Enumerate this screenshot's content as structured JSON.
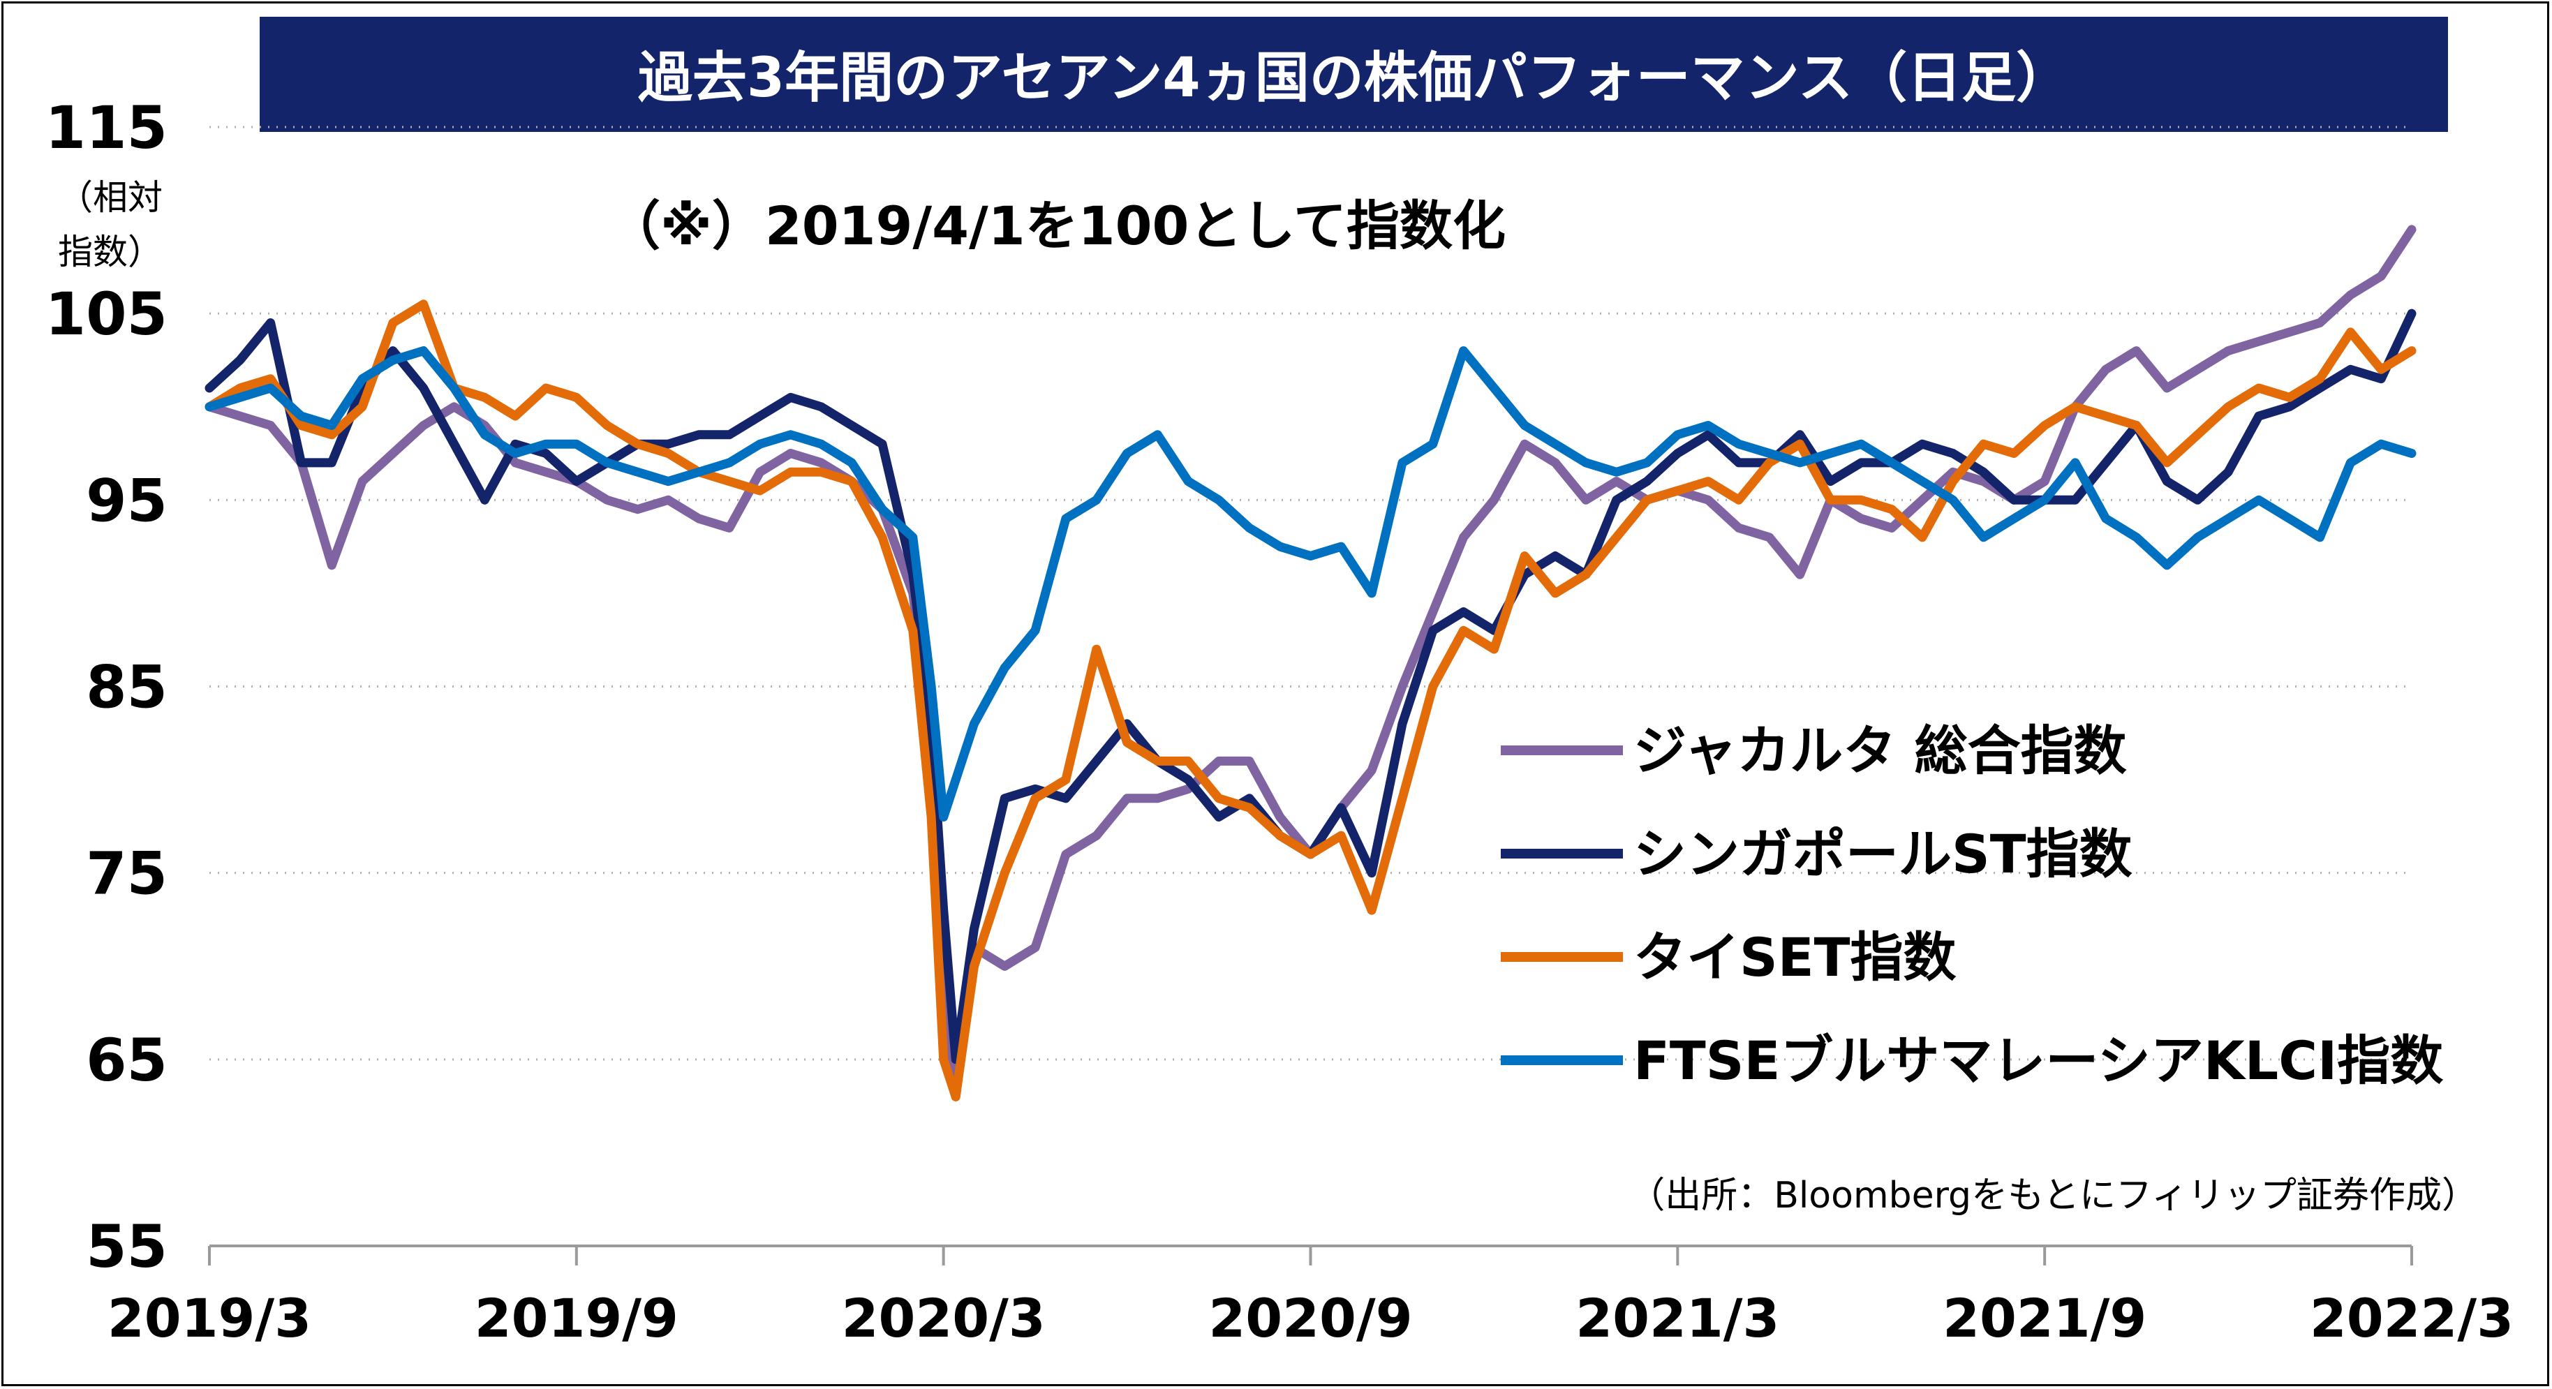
{
  "chart_data": {
    "type": "line",
    "title": "過去3年間のアセアン4ヵ国の株価パフォーマンス（日足）",
    "note": "（※）2019/4/1を100として指数化",
    "ylabel": "（相対指数）",
    "ylabel_lines": [
      "（相対",
      "指数）"
    ],
    "source": "（出所：Bloombergをもとにフィリップ証券作成）",
    "ylim": [
      55,
      115
    ],
    "y_ticks": [
      55,
      65,
      75,
      85,
      95,
      105,
      115
    ],
    "x_ticks": [
      "2019/3",
      "2019/9",
      "2020/3",
      "2020/9",
      "2021/3",
      "2021/9",
      "2022/3"
    ],
    "x_tick_months": [
      0,
      6,
      12,
      18,
      24,
      30,
      36
    ],
    "grid": true,
    "legend_position": "right-middle",
    "x": [
      0.0,
      0.5,
      1.0,
      1.5,
      2.0,
      2.5,
      3.0,
      3.5,
      4.0,
      4.5,
      5.0,
      5.5,
      6.0,
      6.5,
      7.0,
      7.5,
      8.0,
      8.5,
      9.0,
      9.5,
      10.0,
      10.5,
      11.0,
      11.5,
      11.8,
      12.0,
      12.2,
      12.5,
      13.0,
      13.5,
      14.0,
      14.5,
      15.0,
      15.5,
      16.0,
      16.5,
      17.0,
      17.5,
      18.0,
      18.5,
      19.0,
      19.5,
      20.0,
      20.5,
      21.0,
      21.5,
      22.0,
      22.5,
      23.0,
      23.5,
      24.0,
      24.5,
      25.0,
      25.5,
      26.0,
      26.5,
      27.0,
      27.5,
      28.0,
      28.5,
      29.0,
      29.5,
      30.0,
      30.5,
      31.0,
      31.5,
      32.0,
      32.5,
      33.0,
      33.5,
      34.0,
      34.5,
      35.0,
      35.5,
      36.0
    ],
    "series": [
      {
        "name": "ジャカルタ 総合指数",
        "color": "#8064a2",
        "values": [
          100.0,
          99.5,
          99.0,
          97.0,
          91.5,
          96.0,
          97.5,
          99.0,
          100.0,
          99.0,
          97.0,
          96.5,
          96.0,
          95.0,
          94.5,
          95.0,
          94.0,
          93.5,
          96.5,
          97.5,
          97.0,
          96.0,
          94.5,
          90.0,
          82.0,
          70.0,
          63.0,
          71.0,
          70.0,
          71.0,
          76.0,
          77.0,
          79.0,
          79.0,
          79.5,
          81.0,
          81.0,
          78.0,
          76.0,
          78.5,
          80.5,
          85.0,
          89.0,
          93.0,
          95.0,
          98.0,
          97.0,
          95.0,
          96.0,
          95.0,
          95.5,
          95.0,
          93.5,
          93.0,
          91.0,
          95.0,
          94.0,
          93.5,
          95.0,
          96.5,
          96.0,
          95.0,
          96.0,
          100.0,
          102.0,
          103.0,
          101.0,
          102.0,
          103.0,
          103.5,
          104.0,
          104.5,
          106.0,
          107.0,
          109.5
        ]
      },
      {
        "name": "シンガポールST指数",
        "color": "#14246b",
        "values": [
          101.0,
          102.5,
          104.5,
          97.0,
          97.0,
          101.0,
          103.0,
          101.0,
          98.0,
          95.0,
          98.0,
          97.5,
          96.0,
          97.0,
          98.0,
          98.0,
          98.5,
          98.5,
          99.5,
          100.5,
          100.0,
          99.0,
          98.0,
          91.0,
          83.0,
          73.0,
          65.0,
          72.0,
          79.0,
          79.5,
          79.0,
          81.0,
          83.0,
          81.0,
          80.0,
          78.0,
          79.0,
          77.0,
          76.0,
          78.5,
          75.0,
          83.0,
          88.0,
          89.0,
          88.0,
          91.0,
          92.0,
          91.0,
          95.0,
          96.0,
          97.5,
          98.5,
          97.0,
          97.0,
          98.5,
          96.0,
          97.0,
          97.0,
          98.0,
          97.5,
          96.5,
          95.0,
          95.0,
          95.0,
          97.0,
          99.0,
          96.0,
          95.0,
          96.5,
          99.5,
          100.0,
          101.0,
          102.0,
          101.5,
          105.0
        ]
      },
      {
        "name": "タイSET指数",
        "color": "#e36c09",
        "values": [
          100.0,
          101.0,
          101.5,
          99.0,
          98.5,
          100.0,
          104.5,
          105.5,
          101.0,
          100.5,
          99.5,
          101.0,
          100.5,
          99.0,
          98.0,
          97.5,
          96.5,
          96.0,
          95.5,
          96.5,
          96.5,
          96.0,
          93.0,
          88.0,
          78.0,
          65.0,
          63.0,
          70.0,
          75.0,
          79.0,
          80.0,
          87.0,
          82.0,
          81.0,
          81.0,
          79.0,
          78.5,
          77.0,
          76.0,
          77.0,
          73.0,
          79.0,
          85.0,
          88.0,
          87.0,
          92.0,
          90.0,
          91.0,
          93.0,
          95.0,
          95.5,
          96.0,
          95.0,
          97.0,
          98.0,
          95.0,
          95.0,
          94.5,
          93.0,
          96.0,
          98.0,
          97.5,
          99.0,
          100.0,
          99.5,
          99.0,
          97.0,
          98.5,
          100.0,
          101.0,
          100.5,
          101.5,
          104.0,
          102.0,
          103.0
        ]
      },
      {
        "name": "FTSEブルサマレーシアKLCI指数",
        "color": "#0070c0",
        "values": [
          100.0,
          100.5,
          101.0,
          99.5,
          99.0,
          101.5,
          102.5,
          103.0,
          101.0,
          98.5,
          97.5,
          98.0,
          98.0,
          97.0,
          96.5,
          96.0,
          96.5,
          97.0,
          98.0,
          98.5,
          98.0,
          97.0,
          94.5,
          93.0,
          85.0,
          78.0,
          80.0,
          83.0,
          86.0,
          88.0,
          94.0,
          95.0,
          97.5,
          98.5,
          96.0,
          95.0,
          93.5,
          92.5,
          92.0,
          92.5,
          90.0,
          97.0,
          98.0,
          103.0,
          101.0,
          99.0,
          98.0,
          97.0,
          96.5,
          97.0,
          98.5,
          99.0,
          98.0,
          97.5,
          97.0,
          97.5,
          98.0,
          97.0,
          96.0,
          95.0,
          93.0,
          94.0,
          95.0,
          97.0,
          94.0,
          93.0,
          91.5,
          93.0,
          94.0,
          95.0,
          94.0,
          93.0,
          97.0,
          98.0,
          97.5
        ]
      }
    ]
  }
}
